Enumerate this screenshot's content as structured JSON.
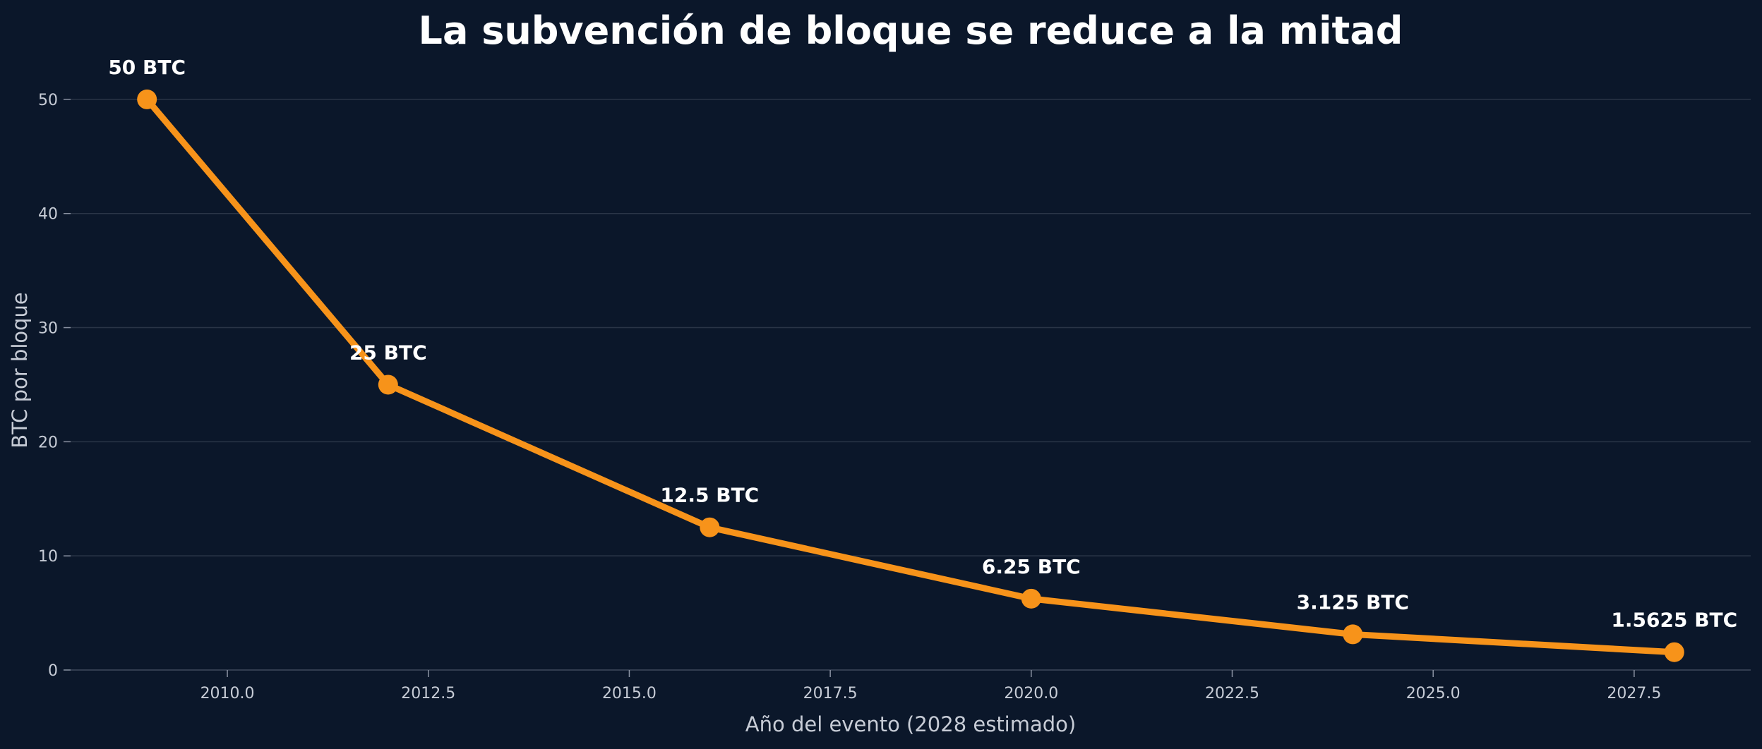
{
  "chart_data": {
    "type": "line",
    "title": "La subvención de bloque se reduce a la mitad",
    "xlabel": "Año del evento (2028 estimado)",
    "ylabel": "BTC por bloque",
    "xlim": [
      2008.05,
      2028.95
    ],
    "ylim": [
      0,
      55
    ],
    "x_ticks": [
      2010.0,
      2012.5,
      2015.0,
      2017.5,
      2020.0,
      2022.5,
      2025.0,
      2027.5
    ],
    "x_tick_labels": [
      "2010.0",
      "2012.5",
      "2015.0",
      "2017.5",
      "2020.0",
      "2022.5",
      "2025.0",
      "2027.5"
    ],
    "y_ticks": [
      0,
      10,
      20,
      30,
      40,
      50
    ],
    "y_tick_labels": [
      "0",
      "10",
      "20",
      "30",
      "40",
      "50"
    ],
    "grid": "horizontal",
    "series": [
      {
        "color": "#f7931a",
        "points": [
          {
            "x": 2009,
            "y": 50,
            "label": "50 BTC"
          },
          {
            "x": 2012,
            "y": 25,
            "label": "25 BTC"
          },
          {
            "x": 2016,
            "y": 12.5,
            "label": "12.5 BTC"
          },
          {
            "x": 2020,
            "y": 6.25,
            "label": "6.25 BTC"
          },
          {
            "x": 2024,
            "y": 3.125,
            "label": "3.125 BTC"
          },
          {
            "x": 2028,
            "y": 1.5625,
            "label": "1.5625 BTC"
          }
        ]
      }
    ],
    "colors": {
      "background": "#0b172a",
      "line": "#f7931a",
      "grid": "#2a3547",
      "text": "#ffffff",
      "tick_text": "#c7ccd6"
    }
  }
}
